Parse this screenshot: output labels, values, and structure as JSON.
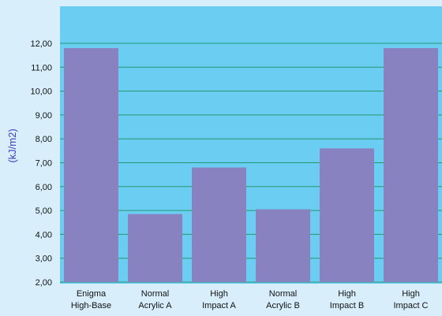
{
  "chart_data": {
    "type": "bar",
    "categories": [
      [
        "Enigma",
        "High-Base"
      ],
      [
        "Normal",
        "Acrylic A"
      ],
      [
        "High",
        "Impact A"
      ],
      [
        "Normal",
        "Acrylic B"
      ],
      [
        "High",
        "Impact B"
      ],
      [
        "High",
        "Impact C"
      ]
    ],
    "values": [
      11.8,
      4.85,
      6.8,
      5.05,
      7.6,
      11.8
    ],
    "ylabel": "(kJ/m2)",
    "ylim": [
      2.0,
      12.0
    ],
    "ytick_labels": [
      "2,00",
      "3,00",
      "4,00",
      "5,00",
      "6,00",
      "7,00",
      "8,00",
      "9,00",
      "10,00",
      "11,00",
      "12,00"
    ],
    "grid": true,
    "colors": {
      "page_background": "#d8effb",
      "plot_background": "#6ccdf2",
      "bar": "#8882c0",
      "grid": "#1f9a6e",
      "axis_label": "#3b3fc4"
    }
  }
}
